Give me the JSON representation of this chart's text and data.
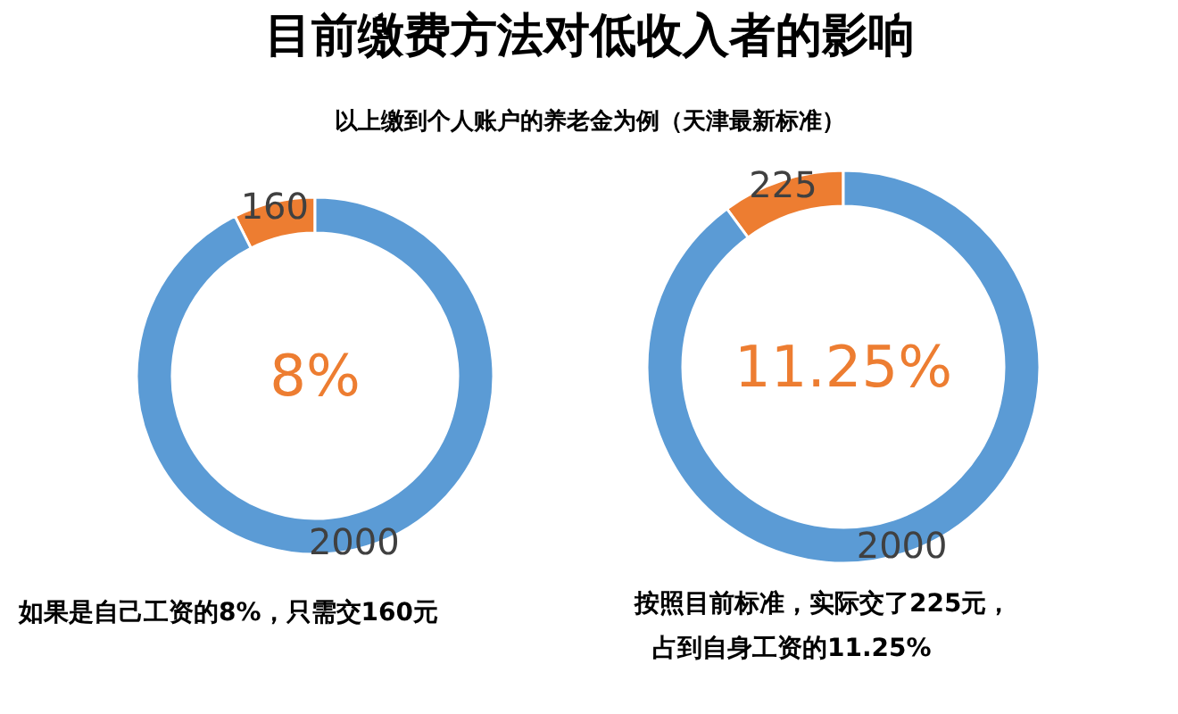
{
  "chart_data": [
    {
      "type": "donut",
      "title": "目前缴费方法对低收入者的影响",
      "subtitle": "以上缴到个人账户的养老金为例（天津最新标准）",
      "categories": [
        null,
        null
      ],
      "values": [
        160,
        2000
      ],
      "colors": [
        "#ed7d31",
        "#5b9bd5"
      ],
      "data_labels": true,
      "annotations": [
        "8%",
        "如果是自己工资的8%，只需交160元"
      ]
    },
    {
      "type": "donut",
      "categories": [
        null,
        null
      ],
      "values": [
        225,
        2000
      ],
      "colors": [
        "#ed7d31",
        "#5b9bd5"
      ],
      "data_labels": true,
      "annotations": [
        "11.25%",
        "按照目前标准，实际交了225元，",
        "占到自身工资的11.25%"
      ]
    }
  ]
}
